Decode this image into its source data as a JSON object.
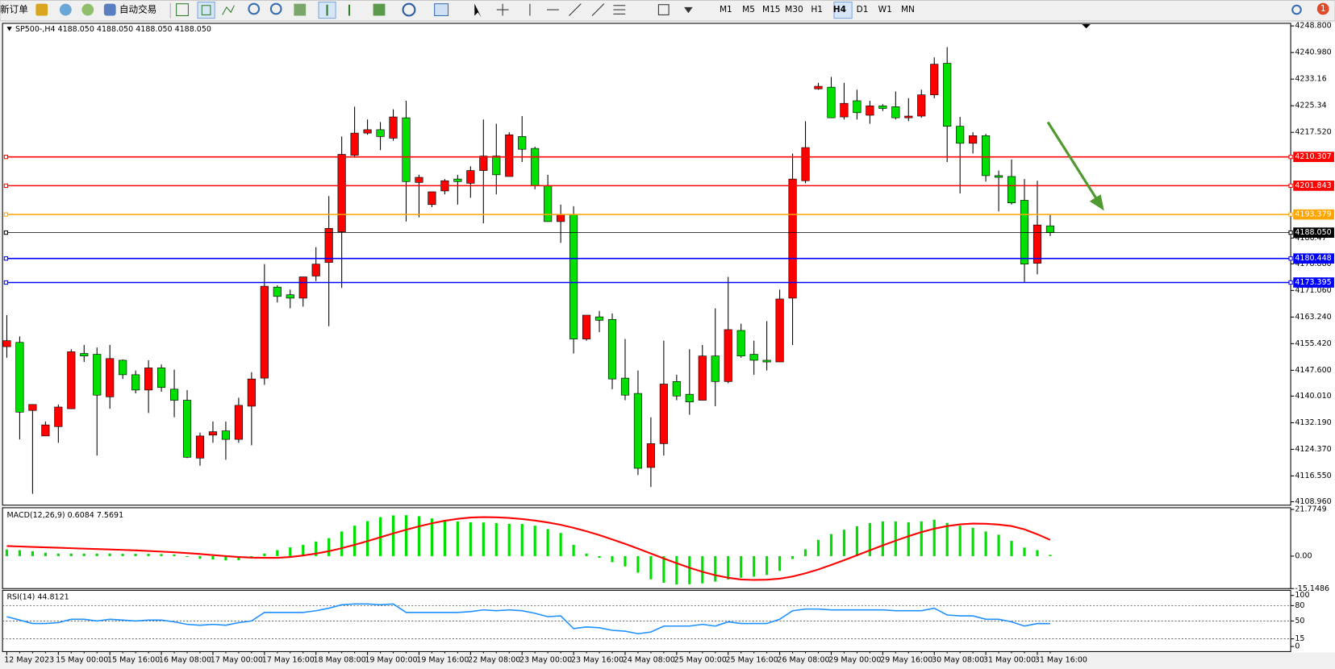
{
  "toolbar": {
    "buttons": [
      "新订单",
      "自动交易"
    ],
    "timeframes": [
      "M1",
      "M5",
      "M15",
      "M30",
      "H1",
      "H4",
      "D1",
      "W1",
      "MN"
    ],
    "active_timeframe": "H4",
    "notifications": "1"
  },
  "chart_data": [
    {
      "type": "candlestick",
      "title": "SP500-,H4  4188.050 4188.050 4188.050 4188.050",
      "categories": [
        "12 May 2023",
        null,
        null,
        null,
        "15 May 00:00",
        null,
        null,
        null,
        "15 May 16:00",
        null,
        null,
        null,
        "16 May 08:00",
        null,
        null,
        null,
        "17 May 00:00",
        null,
        null,
        null,
        "17 May 16:00",
        null,
        null,
        null,
        "18 May 08:00",
        null,
        null,
        null,
        "19 May 00:00",
        null,
        null,
        null,
        "19 May 16:00",
        null,
        null,
        null,
        "22 May 08:00",
        null,
        null,
        null,
        "23 May 00:00",
        null,
        null,
        null,
        "23 May 16:00",
        null,
        null,
        null,
        "24 May 08:00",
        null,
        null,
        null,
        "25 May 00:00",
        null,
        null,
        null,
        "25 May 16:00",
        null,
        null,
        null,
        "26 May 08:00",
        null,
        null,
        null,
        "29 May 00:00",
        null,
        null,
        null,
        "29 May 16:00",
        null,
        null,
        null,
        "30 May 08:00",
        null,
        null,
        null,
        "31 May 00:00",
        null,
        null,
        null,
        "31 May 16:00",
        null
      ],
      "open": [
        4154.55,
        4155.8,
        4135.8,
        4128.3,
        4131.05,
        4136.3,
        4152.55,
        4152.3,
        4139.8,
        4150.55,
        4146.3,
        4141.8,
        4148.3,
        4142.05,
        4138.8,
        4121.8,
        4128.55,
        4129.8,
        4127.3,
        4137.05,
        4145.3,
        4172.05,
        4169.8,
        4168.8,
        4175.3,
        4179.3,
        4188.3,
        4210.8,
        4217.3,
        4218.3,
        4215.8,
        4221.8,
        4202.8,
        4196.3,
        4200.3,
        4203.8,
        4202.55,
        4206.3,
        4210.55,
        4204.55,
        4216.3,
        4212.8,
        4201.8,
        4191.3,
        4193.3,
        4156.8,
        4163.3,
        4162.55,
        4145.3,
        4140.8,
        4119.05,
        4126.05,
        4144.3,
        4140.55,
        4138.8,
        4151.8,
        4144.3,
        4159.3,
        4152.3,
        4150.55,
        4150.05,
        4168.8,
        4203.3,
        4230.3,
        4230.8,
        4222.05,
        4226.8,
        4222.55,
        4225.3,
        4225.05,
        4221.8,
        4222.3,
        4228.55,
        4237.8,
        4219.3,
        4214.3,
        4216.55,
        4204.8,
        4204.55,
        4197.55,
        4179.05,
        4190.05
      ],
      "high": [
        4163.8,
        4157.55,
        4137.55,
        4132.55,
        4137.55,
        4153.8,
        4155.05,
        4154.3,
        4155.05,
        4150.8,
        4147.55,
        4150.55,
        4149.3,
        4147.8,
        4141.8,
        4129.3,
        4132.55,
        4132.55,
        4139.55,
        4147.05,
        4178.8,
        4172.55,
        4171.3,
        4175.05,
        4183.8,
        4198.8,
        4216.3,
        4225.05,
        4221.3,
        4220.55,
        4224.3,
        4226.8,
        4205.05,
        4200.05,
        4203.8,
        4205.05,
        4207.55,
        4221.3,
        4220.05,
        4217.55,
        4222.3,
        4213.3,
        4205.05,
        4196.3,
        4195.8,
        4163.8,
        4165.05,
        4164.3,
        4156.8,
        4147.55,
        4133.8,
        4156.3,
        4146.3,
        4153.8,
        4155.05,
        4165.8,
        4175.05,
        4161.3,
        4156.3,
        4162.05,
        4171.3,
        4211.3,
        4220.8,
        4232.05,
        4233.8,
        4232.05,
        4230.05,
        4226.8,
        4225.8,
        4229.55,
        4227.55,
        4230.05,
        4239.55,
        4242.55,
        4222.05,
        4217.55,
        4217.05,
        4206.3,
        4209.55,
        4203.8,
        4203.3,
        4193.3
      ],
      "low": [
        4151.3,
        4127.3,
        4111.3,
        4128.3,
        4126.3,
        4136.3,
        4150.05,
        4122.55,
        4136.3,
        4145.05,
        4140.8,
        4135.05,
        4141.3,
        4133.8,
        4121.8,
        4119.55,
        4126.3,
        4121.3,
        4126.3,
        4125.55,
        4143.3,
        4167.55,
        4165.8,
        4166.3,
        4173.8,
        4160.55,
        4171.8,
        4210.05,
        4216.8,
        4212.3,
        4215.05,
        4191.3,
        4192.55,
        4195.55,
        4199.3,
        4196.3,
        4198.3,
        4190.8,
        4199.3,
        4204.55,
        4208.8,
        4200.8,
        4191.3,
        4185.05,
        4152.55,
        4156.3,
        4158.8,
        4142.05,
        4138.8,
        4116.8,
        4113.3,
        4122.55,
        4138.8,
        4134.55,
        4138.8,
        4137.05,
        4143.8,
        4151.3,
        4146.3,
        4147.55,
        4150.05,
        4155.05,
        4202.55,
        4230.05,
        4221.8,
        4221.3,
        4221.3,
        4220.05,
        4223.8,
        4221.3,
        4220.8,
        4221.8,
        4227.55,
        4208.8,
        4199.55,
        4211.3,
        4203.05,
        4194.3,
        4196.3,
        4173.3,
        4175.8,
        4187.05
      ],
      "close": [
        4156.3,
        4135.3,
        4137.55,
        4131.55,
        4136.8,
        4153.05,
        4151.8,
        4140.3,
        4151.05,
        4146.3,
        4141.8,
        4148.3,
        4142.55,
        4138.8,
        4122.05,
        4128.3,
        4129.55,
        4127.3,
        4137.3,
        4145.05,
        4172.3,
        4169.3,
        4168.8,
        4175.05,
        4178.8,
        4189.3,
        4211.05,
        4217.3,
        4218.3,
        4216.3,
        4222.05,
        4203.05,
        4204.3,
        4200.05,
        4203.3,
        4203.05,
        4206.3,
        4210.55,
        4205.05,
        4216.8,
        4212.55,
        4201.8,
        4191.3,
        4193.3,
        4156.8,
        4163.8,
        4162.3,
        4145.05,
        4140.3,
        4118.8,
        4126.05,
        4143.55,
        4140.05,
        4138.3,
        4151.8,
        4144.3,
        4159.55,
        4151.8,
        4150.55,
        4150.05,
        4168.55,
        4203.8,
        4213.05,
        4231.05,
        4221.8,
        4226.05,
        4223.3,
        4225.3,
        4224.55,
        4221.8,
        4222.3,
        4228.55,
        4237.55,
        4219.3,
        4214.3,
        4216.55,
        4204.8,
        4204.3,
        4196.8,
        4178.8,
        4190.3,
        4188.05
      ],
      "up_color": "#ff0000",
      "down_color": "#00e000",
      "ylim": [
        4108.96,
        4248.8
      ],
      "yticks": [
        {
          "value": 4248.8,
          "label": "4248.800"
        },
        {
          "value": 4240.98,
          "label": "4240.980"
        },
        4233.16,
        4225.34,
        {
          "value": 4217.52,
          "label": "4217.520"
        },
        4186.47,
        {
          "value": 4178.88,
          "label": "4178.880"
        },
        {
          "value": 4171.06,
          "label": "4171.060"
        },
        {
          "value": 4163.24,
          "label": "4163.240"
        },
        {
          "value": 4155.42,
          "label": "4155.420"
        },
        {
          "value": 4147.6,
          "label": "4147.600"
        },
        {
          "value": 4140.01,
          "label": "4140.010"
        },
        {
          "value": 4132.19,
          "label": "4132.190"
        },
        {
          "value": 4124.37,
          "label": "4124.370"
        },
        {
          "value": 4116.55,
          "label": "4116.550"
        },
        {
          "value": 4108.96,
          "label": "4108.960"
        }
      ],
      "levels": [
        {
          "value": 4210.307,
          "color": "#ff0000"
        },
        {
          "value": 4201.843,
          "color": "#ff0000"
        },
        {
          "value": 4193.379,
          "color": "#ffa500"
        },
        {
          "value": 4188.05,
          "label": "4188.050",
          "color": "#000000"
        },
        {
          "value": 4180.448,
          "color": "#0000ff"
        },
        {
          "value": 4173.395,
          "color": "#0000ff"
        }
      ]
    },
    {
      "type": "macd",
      "title": "MACD(12,26,9) 0.6084 7.5691",
      "series": [
        {
          "color": "#00e000",
          "values": [
            3.1,
            2.8,
            2.3,
            1.6,
            1.2,
            1.2,
            1.2,
            1.2,
            1.2,
            1.1,
            1.1,
            1.1,
            1.0,
            0.8,
            -0.4,
            -1.2,
            -1.6,
            -2.0,
            -1.9,
            -1.1,
            1.2,
            2.8,
            4.1,
            5.3,
            6.8,
            8.4,
            11.5,
            14.2,
            16.3,
            18.2,
            19.0,
            19.1,
            18.6,
            17.6,
            16.9,
            16.2,
            15.8,
            15.7,
            15.4,
            15.1,
            15.0,
            14.2,
            12.6,
            10.8,
            5.3,
            1.2,
            -0.8,
            -2.8,
            -4.8,
            -7.7,
            -10.8,
            -12.4,
            -13.2,
            -13.1,
            -12.7,
            -11.9,
            -10.9,
            -10.1,
            -9.6,
            -8.8,
            -6.9,
            -1.3,
            3.2,
            7.6,
            10.3,
            12.3,
            13.9,
            15.4,
            16.2,
            16.2,
            15.8,
            16.2,
            17.0,
            15.5,
            14.2,
            13.2,
            11.5,
            10.0,
            7.1,
            4.0,
            2.8,
            0.6084
          ]
        },
        {
          "color": "#ff0000",
          "values": [
            4.7,
            4.5,
            4.3,
            4.1,
            3.9,
            3.7,
            3.5,
            3.3,
            3.1,
            2.9,
            2.7,
            2.4,
            2.1,
            1.8,
            1.4,
            1.0,
            0.5,
            0.0,
            -0.4,
            -0.7,
            -0.8,
            -0.8,
            -0.4,
            0.3,
            1.2,
            2.3,
            3.7,
            5.3,
            7.0,
            8.8,
            10.6,
            12.3,
            13.9,
            15.3,
            16.5,
            17.4,
            18.0,
            18.2,
            18.1,
            17.8,
            17.3,
            16.6,
            15.7,
            14.6,
            13.2,
            11.6,
            9.8,
            7.8,
            5.7,
            3.5,
            1.2,
            -1.1,
            -3.3,
            -5.4,
            -7.3,
            -8.9,
            -10.1,
            -10.9,
            -11.1,
            -11.0,
            -10.5,
            -9.5,
            -8.0,
            -6.2,
            -4.1,
            -1.9,
            0.4,
            2.7,
            5.0,
            7.2,
            9.3,
            11.2,
            12.8,
            14.0,
            14.8,
            15.2,
            15.1,
            14.7,
            14.0,
            12.5,
            10.2,
            7.5691
          ]
        }
      ],
      "ylim": [
        -15.1486,
        21.7749
      ],
      "yticks": [
        21.7749,
        {
          "value": 0,
          "label": "0.00"
        },
        -15.1486
      ]
    },
    {
      "type": "line",
      "title": "RSI(14) 44.8121",
      "color": "#1e90ff",
      "values": [
        58.3,
        51.7,
        45.0,
        45.0,
        46.7,
        53.3,
        53.3,
        50.0,
        53.3,
        51.7,
        50.0,
        51.7,
        51.7,
        48.3,
        43.3,
        41.7,
        43.3,
        41.7,
        46.7,
        50.0,
        66.7,
        66.7,
        66.7,
        66.7,
        70.0,
        75.0,
        81.7,
        83.3,
        83.3,
        81.7,
        83.3,
        66.7,
        66.7,
        66.7,
        66.7,
        66.7,
        68.3,
        71.7,
        70.0,
        71.7,
        70.0,
        65.0,
        58.3,
        60.0,
        35.0,
        38.3,
        36.7,
        31.7,
        30.0,
        25.0,
        28.3,
        40.0,
        40.0,
        40.0,
        43.3,
        40.0,
        48.3,
        45.0,
        45.0,
        45.0,
        53.3,
        70.0,
        73.3,
        73.3,
        71.7,
        71.7,
        71.7,
        71.7,
        71.7,
        70.0,
        70.0,
        70.0,
        75.0,
        61.7,
        60.0,
        60.0,
        53.3,
        53.3,
        48.3,
        40.0,
        45.0,
        44.8121
      ],
      "ylim": [
        0,
        100
      ],
      "yticks": [
        100,
        80,
        50,
        15,
        0
      ],
      "levels": [
        80,
        50,
        15
      ]
    }
  ]
}
